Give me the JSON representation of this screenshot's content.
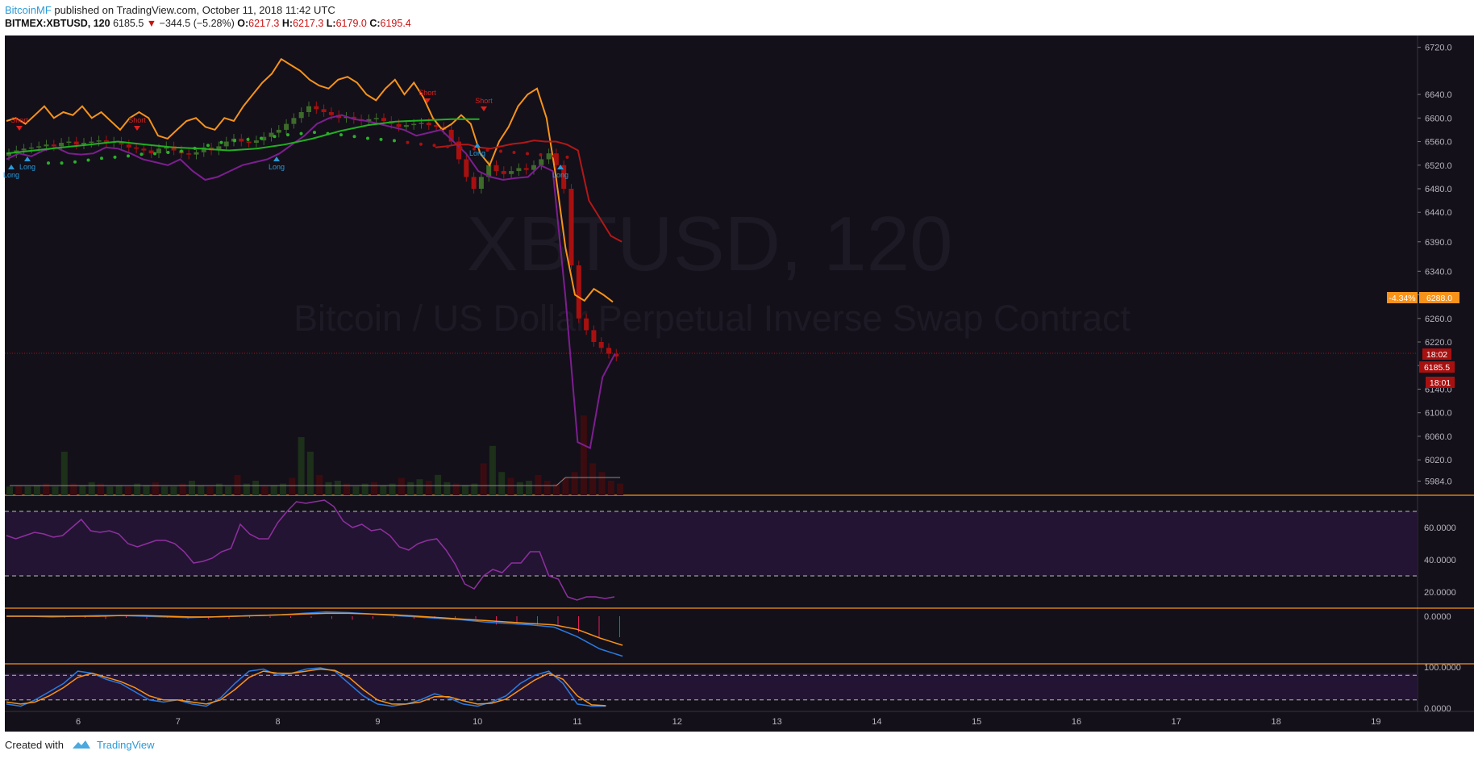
{
  "header": {
    "author": "BitcoinMF",
    "published": " published on TradingView.com, October 11, 2018 11:42 UTC",
    "symbol": "BITMEX:XBTUSD, 120",
    "last": "6185.5",
    "arrow": "▼",
    "change": "−344.5 (−5.28%)",
    "o_label": "O:",
    "o_value": "6217.3",
    "h_label": "H:",
    "h_value": "6217.3",
    "l_label": "L:",
    "l_value": "6179.0",
    "c_label": "C:",
    "c_value": "6195.4"
  },
  "watermark": {
    "symbol": "XBTUSD, 120",
    "description": "Bitcoin / US Dollar Perpetual Inverse Swap Contract"
  },
  "footer": {
    "created_with": "Created with",
    "brand": "TradingView"
  },
  "colors": {
    "background": "#13101a",
    "up": "#3e6b2a",
    "down": "#a81010",
    "orange": "#f7931a",
    "purple": "#7d1e8f",
    "green_ma": "#21b021",
    "blue": "#2a9ad8",
    "pane_border": "#f7931a",
    "rsi_band": "#241433"
  },
  "chart_data": [
    {
      "type": "candlestick",
      "title": "XBTUSD, 120",
      "interval": "120",
      "y_axis_ticks": [
        5984.0,
        6020.0,
        6060.0,
        6100.0,
        6140.0,
        6180.0,
        6220.0,
        6260.0,
        6300.0,
        6340.0,
        6390.0,
        6440.0,
        6480.0,
        6520.0,
        6560.0,
        6600.0,
        6640.0,
        6720.0
      ],
      "x_axis_ticks": [
        "6",
        "7",
        "8",
        "9",
        "10",
        "11",
        "12",
        "13",
        "14",
        "15",
        "16",
        "17",
        "18",
        "19"
      ],
      "price_labels": [
        {
          "text": "-4.34%",
          "price": 6288.0
        },
        {
          "text": "6288.0",
          "price": 6288.0
        },
        {
          "text": "18:02",
          "price": 6205.0
        },
        {
          "text": "6185.5",
          "price": 6185.5
        },
        {
          "text": "18:01",
          "price": 6160.0
        }
      ],
      "series": [
        {
          "name": "candles_close",
          "values": [
            6540,
            6545,
            6548,
            6550,
            6552,
            6555,
            6552,
            6558,
            6560,
            6555,
            6558,
            6560,
            6562,
            6558,
            6560,
            6555,
            6550,
            6548,
            6545,
            6540,
            6548,
            6552,
            6545,
            6540,
            6538,
            6542,
            6550,
            6545,
            6552,
            6560,
            6565,
            6560,
            6558,
            6562,
            6568,
            6575,
            6580,
            6590,
            6600,
            6610,
            6620,
            6615,
            6610,
            6605,
            6600,
            6602,
            6598,
            6595,
            6598,
            6600,
            6595,
            6590,
            6585,
            6588,
            6590,
            6592,
            6588,
            6585,
            6580,
            6560,
            6530,
            6500,
            6480,
            6500,
            6520,
            6510,
            6505,
            6510,
            6515,
            6512,
            6520,
            6530,
            6540,
            6520,
            6480,
            6350,
            6260,
            6240,
            6220,
            6210,
            6200,
            6195.4
          ]
        },
        {
          "name": "orange_line",
          "values": [
            6595,
            6600,
            6590,
            6605,
            6620,
            6600,
            6610,
            6605,
            6620,
            6600,
            6610,
            6595,
            6580,
            6600,
            6610,
            6600,
            6570,
            6565,
            6580,
            6595,
            6600,
            6585,
            6580,
            6600,
            6595,
            6620,
            6640,
            6660,
            6675,
            6700,
            6690,
            6680,
            6665,
            6655,
            6650,
            6665,
            6670,
            6660,
            6640,
            6630,
            6650,
            6665,
            6640,
            6660,
            6635,
            6600,
            6580,
            6590,
            6605,
            6590,
            6540,
            6520,
            6560,
            6585,
            6620,
            6640,
            6650,
            6600,
            6500,
            6380,
            6300,
            6290,
            6310,
            6300,
            6288
          ]
        },
        {
          "name": "purple_line",
          "values": [
            6530,
            6540,
            6535,
            6545,
            6550,
            6540,
            6538,
            6540,
            6550,
            6548,
            6540,
            6530,
            6525,
            6520,
            6530,
            6510,
            6495,
            6500,
            6510,
            6520,
            6525,
            6530,
            6540,
            6555,
            6570,
            6590,
            6600,
            6605,
            6598,
            6595,
            6590,
            6585,
            6580,
            6570,
            6575,
            6580,
            6560,
            6540,
            6510,
            6500,
            6495,
            6498,
            6500,
            6520,
            6510,
            6300,
            6050,
            6040,
            6160,
            6200
          ]
        },
        {
          "name": "red_ma",
          "values": [
            6550,
            6552,
            6555,
            6555,
            6550,
            6548,
            6552,
            6556,
            6558,
            6562,
            6560,
            6560,
            6555,
            6545,
            6460,
            6430,
            6400,
            6390
          ]
        },
        {
          "name": "green_ma",
          "values": [
            6540,
            6545,
            6550,
            6555,
            6560,
            6555,
            6550,
            6548,
            6545,
            6548,
            6555,
            6565,
            6578,
            6588,
            6594,
            6596,
            6598,
            6598
          ]
        },
        {
          "name": "volume",
          "values": [
            6,
            7,
            6,
            7,
            8,
            6,
            30,
            8,
            7,
            9,
            8,
            6,
            7,
            6,
            8,
            7,
            9,
            6,
            6,
            8,
            10,
            7,
            6,
            8,
            6,
            14,
            8,
            10,
            6,
            7,
            8,
            12,
            40,
            30,
            14,
            9,
            10,
            8,
            6,
            8,
            9,
            7,
            8,
            12,
            9,
            11,
            10,
            14,
            9,
            8,
            7,
            8,
            22,
            34,
            16,
            12,
            9,
            10,
            14,
            10,
            8,
            12,
            16,
            55,
            22,
            16,
            10,
            8
          ]
        }
      ],
      "signals": [
        {
          "label": "Long",
          "day": "5"
        },
        {
          "label": "Long",
          "day": "6"
        },
        {
          "label": "Long",
          "day": "8"
        },
        {
          "label": "Long",
          "day": "10"
        },
        {
          "label": "Long",
          "day": "11"
        },
        {
          "label": "Short",
          "day": "6"
        },
        {
          "label": "Short",
          "day": "9"
        },
        {
          "label": "Short",
          "day": "10"
        },
        {
          "label": "Short",
          "day": "11"
        }
      ]
    },
    {
      "type": "line",
      "title": "",
      "y_axis_ticks": [
        20.0,
        40.0,
        60.0
      ],
      "y_axis_tick_labels": [
        "20.0000",
        "40.0000",
        "60.0000"
      ],
      "bands": [
        30,
        70
      ],
      "series": [
        {
          "name": "rsi",
          "values": [
            55,
            53,
            55,
            57,
            56,
            54,
            55,
            60,
            65,
            58,
            57,
            58,
            56,
            50,
            48,
            50,
            52,
            52,
            50,
            45,
            38,
            39,
            41,
            45,
            47,
            62,
            56,
            53,
            53,
            63,
            70,
            76,
            75,
            76,
            77,
            73,
            64,
            60,
            62,
            58,
            59,
            55,
            48,
            46,
            50,
            52,
            53,
            46,
            37,
            25,
            22,
            30,
            34,
            32,
            38,
            38,
            45,
            45,
            30,
            28,
            17,
            15,
            17,
            17,
            16,
            17
          ]
        }
      ]
    },
    {
      "type": "line",
      "title": "",
      "y_axis_ticks": [
        0.0
      ],
      "y_axis_tick_labels": [
        "0.0000"
      ],
      "series": [
        {
          "name": "macd",
          "values": [
            0,
            0,
            -1,
            0,
            1,
            1,
            0,
            -1,
            -2,
            -1,
            0,
            1,
            2,
            4,
            6,
            5,
            3,
            1,
            -1,
            -3,
            -5,
            -8,
            -10,
            -12,
            -15,
            -28,
            -45,
            -55
          ]
        },
        {
          "name": "signal",
          "values": [
            0,
            0,
            0,
            0,
            0,
            1,
            1,
            0,
            -1,
            -1,
            0,
            1,
            2,
            3,
            4,
            4,
            3,
            2,
            0,
            -2,
            -4,
            -6,
            -8,
            -10,
            -12,
            -18,
            -30,
            -40
          ]
        }
      ]
    },
    {
      "type": "line",
      "title": "",
      "y_axis_ticks": [
        0.0,
        100.0
      ],
      "y_axis_tick_labels": [
        "0.0000",
        "100.0000"
      ],
      "bands": [
        20,
        80
      ],
      "series": [
        {
          "name": "stoch_k",
          "values": [
            10,
            5,
            20,
            40,
            60,
            90,
            85,
            70,
            60,
            40,
            20,
            15,
            20,
            10,
            5,
            25,
            60,
            90,
            95,
            80,
            85,
            95,
            98,
            90,
            60,
            30,
            10,
            5,
            10,
            20,
            35,
            25,
            10,
            5,
            15,
            30,
            60,
            80,
            90,
            60,
            10,
            5,
            5
          ]
        },
        {
          "name": "stoch_d",
          "values": [
            15,
            10,
            15,
            30,
            50,
            75,
            85,
            75,
            65,
            50,
            30,
            20,
            20,
            15,
            10,
            20,
            45,
            75,
            90,
            85,
            85,
            90,
            95,
            92,
            75,
            45,
            20,
            10,
            10,
            15,
            28,
            28,
            18,
            10,
            12,
            22,
            45,
            68,
            85,
            70,
            30,
            8,
            6
          ]
        }
      ]
    }
  ]
}
